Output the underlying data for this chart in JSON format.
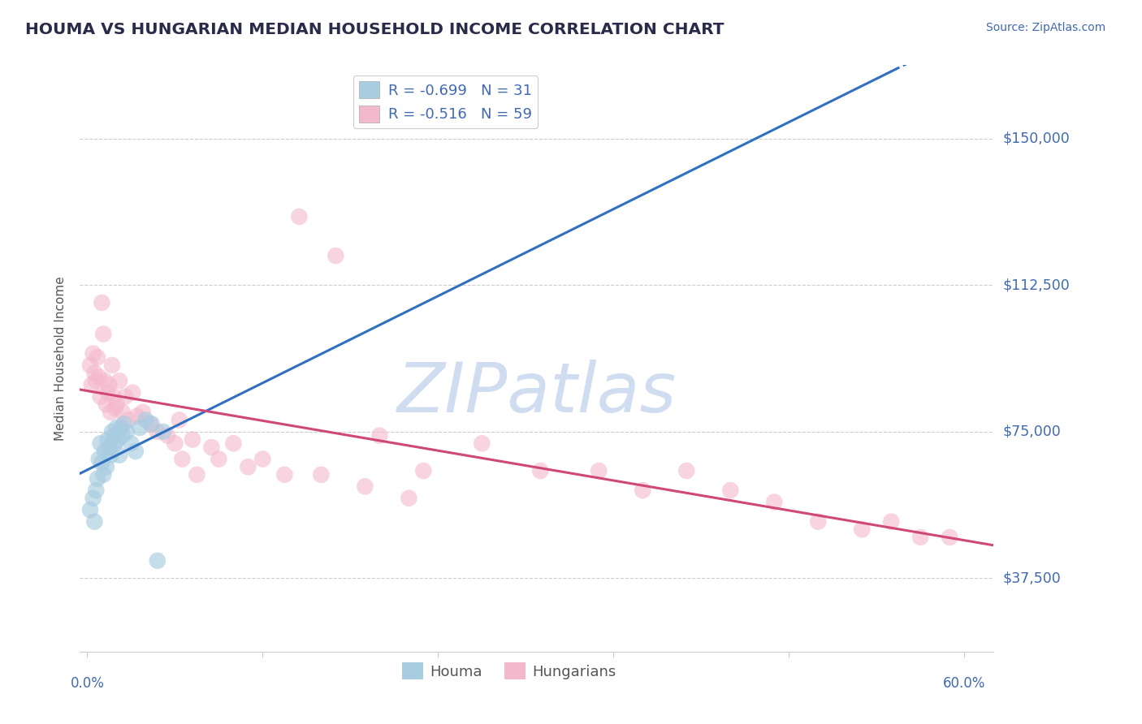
{
  "title": "HOUMA VS HUNGARIAN MEDIAN HOUSEHOLD INCOME CORRELATION CHART",
  "source": "Source: ZipAtlas.com",
  "ylabel": "Median Household Income",
  "ytick_labels": [
    "$37,500",
    "$75,000",
    "$112,500",
    "$150,000"
  ],
  "ytick_values": [
    37500,
    75000,
    112500,
    150000
  ],
  "ymin": 18750,
  "ymax": 168750,
  "xmin": -0.005,
  "xmax": 0.62,
  "legend_r1": "R = -0.699   N = 31",
  "legend_r2": "R = -0.516   N = 59",
  "legend_label1": "Houma",
  "legend_label2": "Hungarians",
  "color_blue": "#a8cce0",
  "color_pink": "#f4b8cc",
  "color_blue_line": "#3070c0",
  "color_pink_line": "#d04878",
  "title_color": "#2a2a4a",
  "axis_label_color": "#4169b0",
  "watermark_color": "#c8d8ef",
  "background_color": "#ffffff",
  "grid_color": "#cccccc",
  "houma_x": [
    0.002,
    0.004,
    0.005,
    0.006,
    0.007,
    0.008,
    0.009,
    0.01,
    0.011,
    0.012,
    0.013,
    0.014,
    0.015,
    0.016,
    0.017,
    0.018,
    0.019,
    0.02,
    0.021,
    0.022,
    0.023,
    0.024,
    0.025,
    0.027,
    0.03,
    0.033,
    0.036,
    0.04,
    0.044,
    0.048,
    0.052
  ],
  "houma_y": [
    55000,
    58000,
    52000,
    60000,
    63000,
    68000,
    72000,
    67000,
    64000,
    70000,
    66000,
    73000,
    71000,
    69000,
    75000,
    74000,
    72000,
    76000,
    73000,
    69000,
    76000,
    74000,
    77000,
    75000,
    72000,
    70000,
    76000,
    78000,
    77000,
    42000,
    75000
  ],
  "hungarian_x": [
    0.002,
    0.003,
    0.004,
    0.005,
    0.006,
    0.007,
    0.008,
    0.009,
    0.01,
    0.011,
    0.012,
    0.013,
    0.014,
    0.015,
    0.016,
    0.017,
    0.018,
    0.019,
    0.02,
    0.022,
    0.024,
    0.026,
    0.028,
    0.031,
    0.034,
    0.038,
    0.043,
    0.048,
    0.055,
    0.063,
    0.072,
    0.085,
    0.1,
    0.12,
    0.145,
    0.17,
    0.2,
    0.23,
    0.27,
    0.31,
    0.35,
    0.38,
    0.41,
    0.44,
    0.47,
    0.5,
    0.53,
    0.55,
    0.57,
    0.59,
    0.06,
    0.065,
    0.075,
    0.09,
    0.11,
    0.135,
    0.16,
    0.19,
    0.22
  ],
  "hungarian_y": [
    92000,
    87000,
    95000,
    90000,
    88000,
    94000,
    89000,
    84000,
    108000,
    100000,
    88000,
    82000,
    85000,
    87000,
    80000,
    92000,
    84000,
    81000,
    82000,
    88000,
    80000,
    84000,
    78000,
    85000,
    79000,
    80000,
    77000,
    75000,
    74000,
    78000,
    73000,
    71000,
    72000,
    68000,
    130000,
    120000,
    74000,
    65000,
    72000,
    65000,
    65000,
    60000,
    65000,
    60000,
    57000,
    52000,
    50000,
    52000,
    48000,
    48000,
    72000,
    68000,
    64000,
    68000,
    66000,
    64000,
    64000,
    61000,
    58000
  ]
}
